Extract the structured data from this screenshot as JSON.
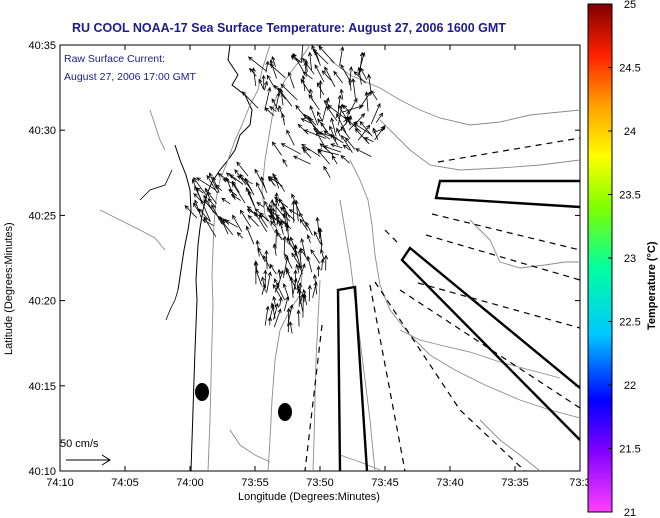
{
  "map": {
    "title": "RU COOL  NOAA-17  Sea Surface Temperature:  August 27, 2006 1600 GMT",
    "current_label_line1": "Raw Surface Current:",
    "current_label_line2": "August 27, 2006 17:00 GMT",
    "xlabel": "Longitude (Degrees:Minutes)",
    "ylabel": "Latitude (Degrees:Minutes)",
    "x_ticks": [
      "74:10",
      "74:05",
      "74:00",
      "73:55",
      "73:50",
      "73:45",
      "73:40",
      "73:35",
      "73:3"
    ],
    "y_ticks": [
      "40:35",
      "40:30",
      "40:25",
      "40:20",
      "40:15",
      "40:10"
    ],
    "scale_label": "50 cm/s"
  },
  "colorbar": {
    "label": "Temperature (°C)",
    "ticks": [
      "25",
      "24.5",
      "24",
      "23.5",
      "23",
      "22.5",
      "22",
      "21.5",
      "21"
    ],
    "min": 21,
    "max": 25,
    "colors": [
      "#ff40ff",
      "#8000ff",
      "#0000ff",
      "#00c0ff",
      "#00ffa0",
      "#80ff00",
      "#ffff00",
      "#ffa000",
      "#ff2000",
      "#800000"
    ]
  }
}
